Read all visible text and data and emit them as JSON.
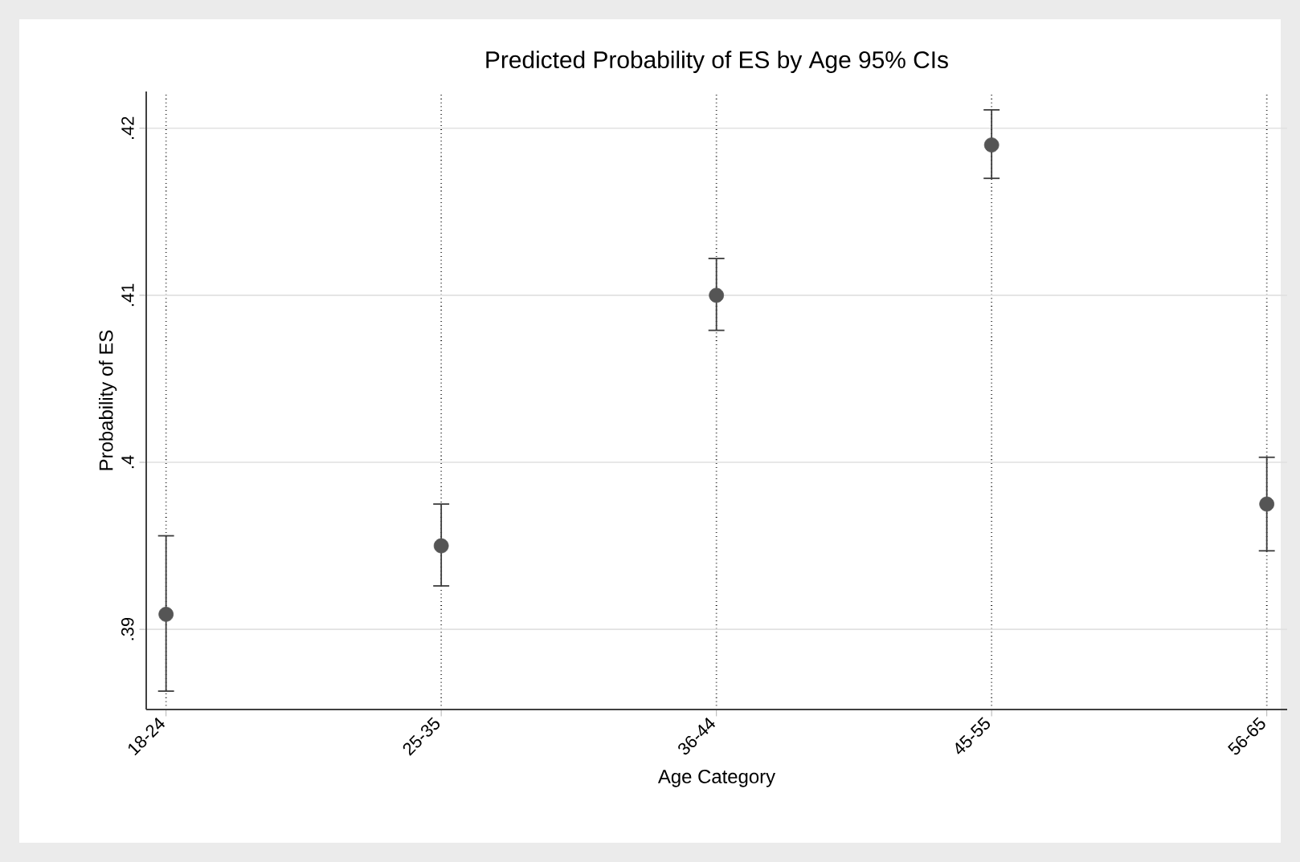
{
  "chart_data": {
    "type": "scatter",
    "title": "Predicted Probability of ES by Age 95% CIs",
    "xlabel": "Age Category",
    "ylabel": "Probability of ES",
    "categories": [
      "18-24",
      "25-35",
      "36-44",
      "45-55",
      "56-65"
    ],
    "values": [
      0.3909,
      0.395,
      0.41,
      0.419,
      0.3975
    ],
    "errors": [
      [
        0.3863,
        0.3956
      ],
      [
        0.3926,
        0.3975
      ],
      [
        0.4079,
        0.4122
      ],
      [
        0.417,
        0.4211
      ],
      [
        0.3947,
        0.4003
      ]
    ],
    "color": "#555555",
    "marker": "circle",
    "grid": true,
    "ylim": [
      0.3852,
      0.4222
    ],
    "yticks": [
      {
        "value": 0.39,
        "label": ".39"
      },
      {
        "value": 0.4,
        "label": ".4"
      },
      {
        "value": 0.41,
        "label": ".41"
      },
      {
        "value": 0.42,
        "label": ".42"
      }
    ]
  }
}
